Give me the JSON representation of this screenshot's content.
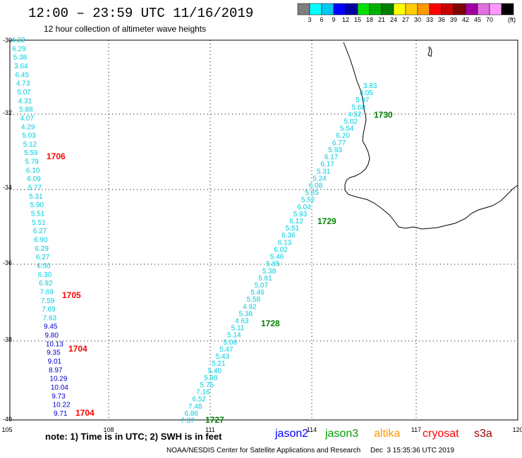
{
  "header": {
    "title": "12:00 – 23:59 UTC 11/16/2019",
    "subtitle": "12 hour collection of altimeter wave heights"
  },
  "colorbar": {
    "colors": [
      "#7f7f7f",
      "#00ffff",
      "#00c8f0",
      "#0000ff",
      "#0000a0",
      "#00e000",
      "#00b000",
      "#008000",
      "#ffff00",
      "#ffcc00",
      "#ff9900",
      "#ff0000",
      "#c80000",
      "#800000",
      "#a000a0",
      "#e070e0",
      "#ff99ff",
      "#000000"
    ],
    "ticks": [
      "3",
      "6",
      "9",
      "12",
      "15",
      "18",
      "21",
      "24",
      "27",
      "30",
      "33",
      "36",
      "39",
      "42",
      "45",
      "70"
    ],
    "unit": "(ft)"
  },
  "map": {
    "lon_range": [
      105,
      120
    ],
    "lat_range": [
      -40,
      -30
    ],
    "lon_ticks": [
      "105",
      "108",
      "111",
      "114",
      "117",
      "120"
    ],
    "lat_ticks": [
      "-30",
      "-32",
      "-34",
      "-36",
      "-38",
      "-40"
    ],
    "grid": "dotted"
  },
  "tracks": {
    "left": [
      {
        "v": "4.22",
        "c": "#00ccdd"
      },
      {
        "v": "6.29",
        "c": "#00ccdd"
      },
      {
        "v": "5.38",
        "c": "#00ccdd"
      },
      {
        "v": "3.64",
        "c": "#00ccdd"
      },
      {
        "v": "6.45",
        "c": "#00ccdd"
      },
      {
        "v": "4.73",
        "c": "#00ccdd"
      },
      {
        "v": "5.07",
        "c": "#00ccdd"
      },
      {
        "v": "4.31",
        "c": "#00ccdd"
      },
      {
        "v": "5.88",
        "c": "#00ccdd"
      },
      {
        "v": "4.07",
        "c": "#00ccdd"
      },
      {
        "v": "4.29",
        "c": "#00ccdd"
      },
      {
        "v": "5.03",
        "c": "#00ccdd"
      },
      {
        "v": "5.12",
        "c": "#00ccdd"
      },
      {
        "v": "5.59",
        "c": "#00ccdd"
      },
      {
        "v": "5.79",
        "c": "#00ccdd"
      },
      {
        "v": "6.10",
        "c": "#00ccdd"
      },
      {
        "v": "6.09",
        "c": "#00ccdd"
      },
      {
        "v": "5.77",
        "c": "#00ccdd"
      },
      {
        "v": "5.31",
        "c": "#00ccdd"
      },
      {
        "v": "5.90",
        "c": "#00ccdd"
      },
      {
        "v": "5.51",
        "c": "#00ccdd"
      },
      {
        "v": "5.51",
        "c": "#00ccdd"
      },
      {
        "v": "6.27",
        "c": "#00ccdd"
      },
      {
        "v": "6.90",
        "c": "#00ccdd"
      },
      {
        "v": "6.29",
        "c": "#00ccdd"
      },
      {
        "v": "6.27",
        "c": "#00ccdd"
      },
      {
        "v": "6.50",
        "c": "#00ccdd"
      },
      {
        "v": "6.30",
        "c": "#00ccdd"
      },
      {
        "v": "6.92",
        "c": "#00ccdd"
      },
      {
        "v": "7.69",
        "c": "#00ccdd"
      },
      {
        "v": "7.59",
        "c": "#00ccdd"
      },
      {
        "v": "7.69",
        "c": "#00ccdd"
      },
      {
        "v": "7.63",
        "c": "#00ccdd"
      },
      {
        "v": "9.45",
        "c": "#0000cc"
      },
      {
        "v": "9.80",
        "c": "#0000cc"
      },
      {
        "v": "10.13",
        "c": "#0000cc"
      },
      {
        "v": "9.35",
        "c": "#0000cc"
      },
      {
        "v": "9.01",
        "c": "#0000cc"
      },
      {
        "v": "8.97",
        "c": "#0000cc"
      },
      {
        "v": "10.29",
        "c": "#0000cc"
      },
      {
        "v": "10.04",
        "c": "#0000cc"
      },
      {
        "v": "9.73",
        "c": "#0000cc"
      },
      {
        "v": "10.22",
        "c": "#0000cc"
      },
      {
        "v": "9.71",
        "c": "#0000cc"
      }
    ],
    "diagonal": [
      "3.83",
      "4.05",
      "5.97",
      "5.60",
      "4.52",
      "5.02",
      "5.54",
      "6.20",
      "6.77",
      "5.93",
      "6.17",
      "6.17",
      "5.31",
      "5.24",
      "6.08",
      "5.85",
      "5.52",
      "6.04",
      "5.93",
      "6.12",
      "5.51",
      "6.36",
      "6.13",
      "6.02",
      "5.46",
      "5.85",
      "5.38",
      "5.81",
      "5.07",
      "5.46",
      "5.58",
      "4.92",
      "5.38",
      "4.63",
      "5.11",
      "5.14",
      "5.06",
      "5.47",
      "5.43",
      "5.21",
      "5.40",
      "5.98",
      "5.75",
      "7.16",
      "6.52",
      "7.48",
      "6.86",
      "7.37"
    ],
    "diagonal_color": "#00ccdd"
  },
  "pass_labels": [
    {
      "text": "1706",
      "color": "#ff0000"
    },
    {
      "text": "1705",
      "color": "#ff0000"
    },
    {
      "text": "1704",
      "color": "#ff0000"
    },
    {
      "text": "1704",
      "color": "#ff0000"
    },
    {
      "text": "1730",
      "color": "#008000"
    },
    {
      "text": "1729",
      "color": "#008000"
    },
    {
      "text": "1728",
      "color": "#008000"
    },
    {
      "text": "1727",
      "color": "#008000"
    }
  ],
  "footer": {
    "note": "note:  1) Time is in UTC;  2) SWH is in feet",
    "satellites": [
      {
        "name": "jason2",
        "color": "#0000ff"
      },
      {
        "name": "jason3",
        "color": "#00a000"
      },
      {
        "name": "altika",
        "color": "#ff9900"
      },
      {
        "name": "cryosat",
        "color": "#ff0000"
      },
      {
        "name": "s3a",
        "color": "#a00000"
      }
    ],
    "credit": "NOAA/NESDIS Center for Satellite Applications and Research     Dec  3 15:35:36 UTC 2019"
  }
}
